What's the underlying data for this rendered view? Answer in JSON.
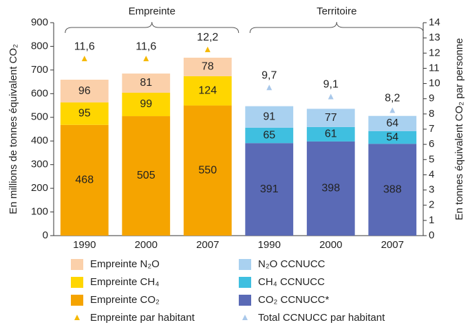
{
  "chart_data": {
    "type": "bar",
    "stacked": true,
    "group_labels": [
      "Empreinte",
      "Territoire"
    ],
    "categories": [
      "1990",
      "2000",
      "2007",
      "1990",
      "2000",
      "2007"
    ],
    "y_label": "En millions de tonnes équivalent CO₂",
    "y2_label": "En tonnes équivalent CO₂ par personne",
    "ylim": [
      0,
      900
    ],
    "yticks": [
      0,
      100,
      200,
      300,
      400,
      500,
      600,
      700,
      800,
      900
    ],
    "y2lim": [
      0,
      14
    ],
    "y2ticks": [
      0,
      1,
      2,
      3,
      4,
      5,
      6,
      7,
      8,
      9,
      10,
      11,
      12,
      13,
      14
    ],
    "series": [
      {
        "name": "Empreinte CO₂",
        "color": "#f5a400",
        "values": [
          468,
          505,
          550,
          null,
          null,
          null
        ]
      },
      {
        "name": "Empreinte CH₄",
        "color": "#ffd600",
        "values": [
          95,
          99,
          124,
          null,
          null,
          null
        ]
      },
      {
        "name": "Empreinte N₂O",
        "color": "#fbd0aa",
        "values": [
          96,
          81,
          78,
          null,
          null,
          null
        ]
      },
      {
        "name": "CO₂ CCNUCC*",
        "color": "#5a6ab6",
        "values": [
          null,
          null,
          null,
          391,
          398,
          388
        ]
      },
      {
        "name": "CH₄ CCNUCC",
        "color": "#3fbfe0",
        "values": [
          null,
          null,
          null,
          65,
          61,
          54
        ]
      },
      {
        "name": "N₂O CCNUCC",
        "color": "#a9d1f0",
        "values": [
          null,
          null,
          null,
          91,
          77,
          64
        ]
      },
      {
        "name": "Empreinte par habitant",
        "type": "scatter",
        "axis": "y2",
        "color": "#f5b800",
        "values": [
          11.6,
          11.6,
          12.2,
          null,
          null,
          null
        ],
        "value_labels": [
          "11,6",
          "11,6",
          "12,2",
          null,
          null,
          null
        ]
      },
      {
        "name": "Total CCNUCC par habitant",
        "type": "scatter",
        "axis": "y2",
        "color": "#a9c8ea",
        "values": [
          null,
          null,
          null,
          9.7,
          9.1,
          8.2
        ],
        "value_labels": [
          null,
          null,
          null,
          "9,7",
          "9,1",
          "8,2"
        ]
      }
    ]
  }
}
